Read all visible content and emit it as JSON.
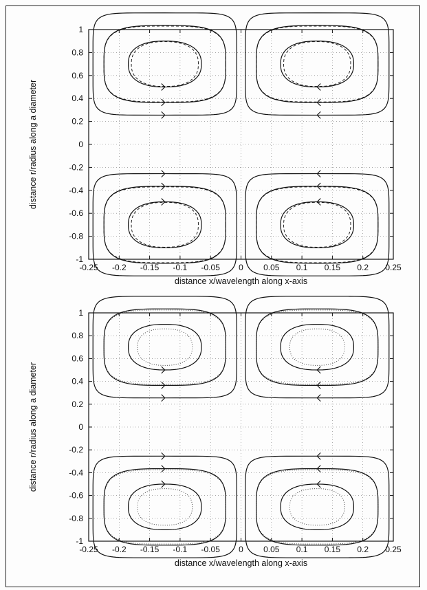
{
  "chart_data": [
    {
      "type": "line",
      "title": "",
      "xlabel": "distance x/wavelength along x-axis",
      "ylabel": "distance r/radius along a diameter",
      "xlim": [
        -0.25,
        0.25
      ],
      "ylim": [
        -1,
        1
      ],
      "x_ticks": [
        "-0.25",
        "-0.2",
        "-0.15",
        "-0.1",
        "-0.05",
        "0",
        "0.05",
        "0.1",
        "0.15",
        "0.2",
        "0.25"
      ],
      "y_ticks": [
        "1",
        "0.8",
        "0.6",
        "0.4",
        "0.2",
        "0",
        "-0.2",
        "-0.4",
        "-0.6",
        "-0.8",
        "-1"
      ],
      "grid": true,
      "comparison_style": "dashed",
      "cells": [
        {
          "xc": -0.125,
          "yc": 0.7,
          "direction": "clockwise"
        },
        {
          "xc": 0.125,
          "yc": 0.7,
          "direction": "counterclockwise"
        },
        {
          "xc": -0.125,
          "yc": -0.7,
          "direction": "counterclockwise"
        },
        {
          "xc": 0.125,
          "yc": -0.7,
          "direction": "clockwise"
        }
      ],
      "contours": [
        {
          "hx": 0.118,
          "hy": 0.445,
          "exponent": 7
        },
        {
          "hx": 0.1,
          "hy": 0.335,
          "exponent": 3.6
        },
        {
          "hx": 0.06,
          "hy": 0.2,
          "exponent": 2.4
        }
      ],
      "comparison_contours": [
        {
          "hx": 0.1,
          "hy": 0.33,
          "exponent": 3.6
        },
        {
          "hx": 0.055,
          "hy": 0.195,
          "exponent": 2.4
        }
      ]
    },
    {
      "type": "line",
      "title": "",
      "xlabel": "distance x/wavelength along x-axis",
      "ylabel": "distance r/radius along a diameter",
      "xlim": [
        -0.25,
        0.25
      ],
      "ylim": [
        -1,
        1
      ],
      "x_ticks": [
        "-0.25",
        "-0.2",
        "-0.15",
        "-0.1",
        "-0.05",
        "0",
        "0.05",
        "0.1",
        "0.15",
        "0.2",
        "0.25"
      ],
      "y_ticks": [
        "1",
        "0.8",
        "0.6",
        "0.4",
        "0.2",
        "0",
        "-0.2",
        "-0.4",
        "-0.6",
        "-0.8",
        "-1"
      ],
      "grid": true,
      "comparison_style": "dotted",
      "cells": [
        {
          "xc": -0.125,
          "yc": 0.7,
          "direction": "clockwise"
        },
        {
          "xc": 0.125,
          "yc": 0.7,
          "direction": "counterclockwise"
        },
        {
          "xc": -0.125,
          "yc": -0.7,
          "direction": "counterclockwise"
        },
        {
          "xc": 0.125,
          "yc": -0.7,
          "direction": "clockwise"
        }
      ],
      "contours": [
        {
          "hx": 0.118,
          "hy": 0.445,
          "exponent": 7
        },
        {
          "hx": 0.1,
          "hy": 0.335,
          "exponent": 3.6
        },
        {
          "hx": 0.06,
          "hy": 0.2,
          "exponent": 2.4
        }
      ],
      "comparison_contours": [
        {
          "hx": 0.1,
          "hy": 0.325,
          "exponent": 3.6
        },
        {
          "hx": 0.045,
          "hy": 0.16,
          "exponent": 2.4
        }
      ]
    }
  ]
}
